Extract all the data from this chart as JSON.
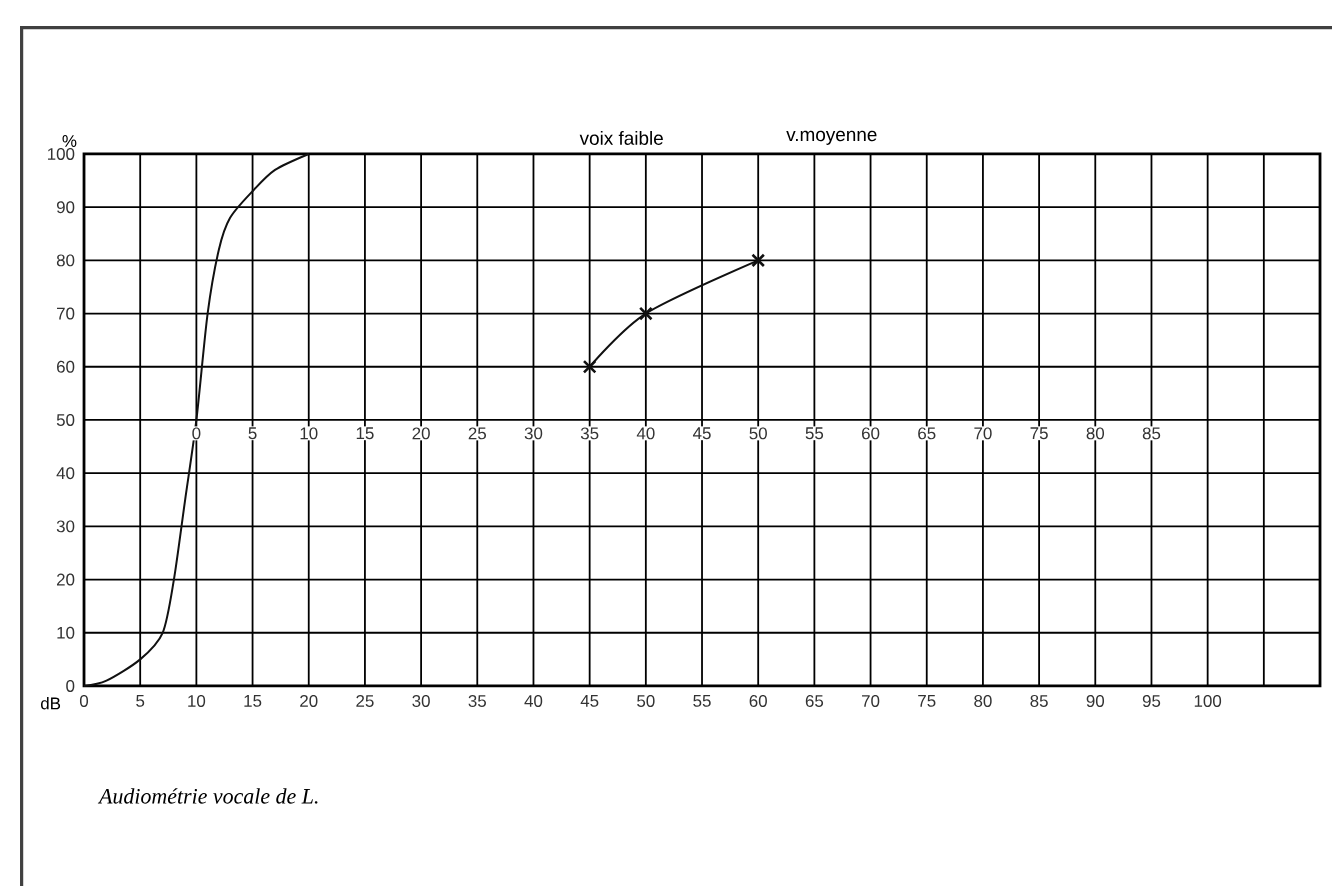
{
  "chart_data": {
    "type": "line",
    "xlabel": "dB",
    "ylabel": "%",
    "annotations": [
      "voix faible",
      "v.moyenne",
      "Audiométrie vocale de L."
    ],
    "xlim": [
      0,
      110
    ],
    "ylim": [
      0,
      100
    ],
    "xticks": [
      0,
      5,
      10,
      15,
      20,
      25,
      30,
      35,
      40,
      45,
      50,
      55,
      60,
      65,
      70,
      75,
      80,
      85,
      90,
      95,
      100,
      {
        "value": 105,
        "label": null
      }
    ],
    "yticks": [
      0,
      10,
      20,
      30,
      40,
      50,
      60,
      70,
      80,
      90,
      100
    ],
    "x2lim": [
      -10,
      100
    ],
    "x2ticks": [
      0,
      5,
      10,
      15,
      20,
      25,
      30,
      35,
      40,
      45,
      50,
      55,
      60,
      65,
      70,
      75,
      80,
      85
    ],
    "grid": true,
    "line_style": "solid",
    "series": [
      {
        "color": "#111111",
        "marker": "none",
        "x": [
          0,
          2,
          5,
          7,
          8,
          9,
          10,
          11,
          12,
          13,
          15,
          17,
          20
        ],
        "values": [
          0,
          1,
          5,
          10,
          20,
          35,
          50,
          70,
          82,
          88,
          93,
          97,
          100
        ]
      },
      {
        "color": "#111111",
        "marker": "cross",
        "x": [
          45,
          50,
          60
        ],
        "values": [
          60,
          70,
          80
        ]
      }
    ]
  }
}
